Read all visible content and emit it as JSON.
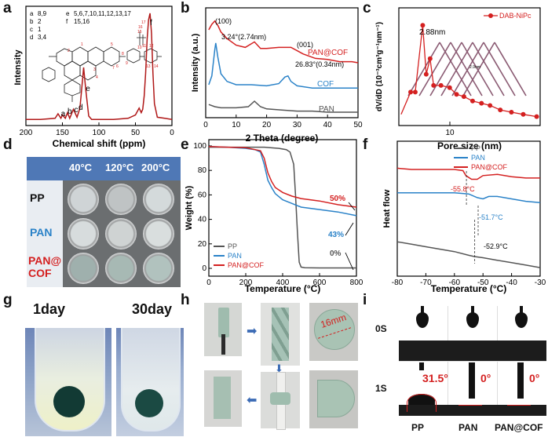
{
  "panel_labels": [
    "a",
    "b",
    "c",
    "d",
    "e",
    "f",
    "g",
    "h",
    "i"
  ],
  "chart_data": [
    {
      "panel": "a",
      "type": "line",
      "xlabel": "Chemical shift (ppm)",
      "ylabel": "Intensity",
      "xlim": [
        200,
        0
      ],
      "xticks": [
        "200",
        "150",
        "100",
        "50",
        "0"
      ],
      "color": "#b01818",
      "x": [
        200,
        180,
        160,
        156,
        152,
        150,
        146,
        143,
        140,
        135,
        130,
        126,
        123,
        121,
        118,
        114,
        110,
        100,
        80,
        60,
        50,
        45,
        42,
        40,
        38,
        36,
        34,
        32,
        30,
        28,
        26,
        24,
        20,
        10,
        0
      ],
      "y": [
        0.04,
        0.04,
        0.05,
        0.09,
        0.05,
        0.08,
        0.05,
        0.1,
        0.05,
        0.13,
        0.06,
        0.14,
        0.35,
        0.5,
        0.3,
        0.07,
        0.04,
        0.04,
        0.04,
        0.05,
        0.08,
        0.14,
        0.1,
        0.13,
        0.25,
        0.45,
        0.75,
        0.92,
        0.98,
        0.8,
        0.45,
        0.18,
        0.06,
        0.05,
        0.04
      ],
      "peak_labels": [
        "a",
        "b",
        "c",
        "d",
        "e",
        "f"
      ],
      "legend_rows": [
        [
          "a",
          "8,9",
          "e",
          "5,6,7,10,11,12,13,17"
        ],
        [
          "b",
          "2",
          "f",
          "15,16"
        ],
        [
          "c",
          "1",
          "",
          ""
        ],
        [
          "d",
          "3,4",
          "",
          ""
        ]
      ]
    },
    {
      "panel": "b",
      "type": "line",
      "xlabel": "2 Theta (degree)",
      "ylabel": "Intensity (a.u.)",
      "xlim": [
        0,
        50
      ],
      "xticks": [
        "0",
        "10",
        "20",
        "30",
        "40",
        "50"
      ],
      "series": [
        {
          "name": "PAN@COF",
          "color": "#d42020",
          "x": [
            1,
            2,
            3,
            4,
            5,
            7,
            10,
            13,
            16,
            18,
            20,
            24,
            28,
            32,
            36,
            40,
            44,
            48,
            50
          ],
          "y": [
            0.8,
            0.85,
            0.88,
            0.84,
            0.78,
            0.72,
            0.66,
            0.64,
            0.69,
            0.63,
            0.63,
            0.64,
            0.64,
            0.58,
            0.54,
            0.53,
            0.51,
            0.51,
            0.5
          ]
        },
        {
          "name": "COF",
          "color": "#2a82c8",
          "x": [
            1,
            2,
            3,
            3.3,
            4,
            5,
            7,
            10,
            15,
            20,
            24,
            26,
            27,
            28,
            30,
            35,
            40,
            45,
            50
          ],
          "y": [
            0.3,
            0.38,
            0.62,
            0.68,
            0.55,
            0.4,
            0.33,
            0.3,
            0.3,
            0.29,
            0.31,
            0.37,
            0.38,
            0.33,
            0.29,
            0.27,
            0.27,
            0.27,
            0.27
          ]
        },
        {
          "name": "PAN",
          "color": "#555555",
          "x": [
            1,
            3,
            5,
            8,
            10,
            14,
            16,
            18,
            20,
            25,
            30,
            35,
            40,
            45,
            50
          ],
          "y": [
            0.12,
            0.1,
            0.09,
            0.09,
            0.09,
            0.1,
            0.15,
            0.1,
            0.08,
            0.07,
            0.06,
            0.06,
            0.05,
            0.05,
            0.05
          ]
        }
      ],
      "annotations": [
        "(100)",
        "3.24°(2.74nm)",
        "(001)",
        "26.83°(0.34nm)"
      ]
    },
    {
      "panel": "c",
      "type": "line",
      "xlabel": "Pore size (nm)",
      "ylabel": "dV/dD (10⁻³cm³g⁻¹nm⁻¹)",
      "xscale": "log",
      "xtick": "10",
      "series": [
        {
          "name": "DAB-NiPc",
          "color": "#d42020",
          "x": [
            1.5,
            2.0,
            2.3,
            2.88,
            3.2,
            3.6,
            4.0,
            5.0,
            6.5,
            8,
            10,
            13,
            17,
            22,
            30,
            42,
            60,
            90
          ],
          "y": [
            0.05,
            0.15,
            0.15,
            0.45,
            0.23,
            0.3,
            0.18,
            0.18,
            0.17,
            0.14,
            0.13,
            0.11,
            0.1,
            0.09,
            0.07,
            0.06,
            0.05,
            0.04
          ]
        }
      ],
      "annotation": "2.88nm",
      "inset_label": "2.9nm"
    },
    {
      "panel": "e",
      "type": "line",
      "xlabel": "Temperature (°C)",
      "ylabel": "Weight (%)",
      "xlim": [
        0,
        800
      ],
      "ylim": [
        0,
        100
      ],
      "xticks": [
        "0",
        "200",
        "400",
        "600",
        "800"
      ],
      "yticks": [
        "0",
        "20",
        "40",
        "60",
        "80",
        "100"
      ],
      "series": [
        {
          "name": "PP",
          "color": "#555555",
          "x": [
            0,
            100,
            200,
            300,
            380,
            420,
            440,
            460,
            470,
            480,
            490,
            500,
            520,
            600,
            800
          ],
          "y": [
            99,
            99,
            99,
            99,
            98,
            97,
            95,
            85,
            60,
            30,
            5,
            1,
            0.5,
            0.3,
            0.3
          ]
        },
        {
          "name": "PAN",
          "color": "#2a82c8",
          "x": [
            0,
            100,
            200,
            250,
            280,
            300,
            320,
            340,
            360,
            400,
            450,
            500,
            600,
            700,
            800
          ],
          "y": [
            99.5,
            99,
            98,
            97,
            95,
            85,
            72,
            66,
            61,
            56,
            53,
            50,
            48,
            46,
            43
          ]
        },
        {
          "name": "PAN@COF",
          "color": "#d42020",
          "x": [
            0,
            100,
            200,
            250,
            280,
            300,
            320,
            340,
            360,
            400,
            450,
            500,
            600,
            700,
            800
          ],
          "y": [
            99.5,
            99,
            98.5,
            97,
            96,
            90,
            78,
            71,
            66,
            62,
            59,
            57,
            55,
            52,
            50
          ]
        }
      ],
      "annotations": [
        "50%",
        "43%",
        "0%"
      ]
    },
    {
      "panel": "f",
      "type": "line",
      "xlabel": "Temperature (°C)",
      "ylabel": "Heat flow",
      "xlim": [
        -80,
        -30
      ],
      "xticks": [
        "-80",
        "-70",
        "-60",
        "-50",
        "-40",
        "-30"
      ],
      "series": [
        {
          "name": "PP",
          "color": "#555555",
          "x": [
            -80,
            -75,
            -70,
            -65,
            -60,
            -55,
            -53,
            -50,
            -45,
            -40,
            -35,
            -30
          ],
          "y": [
            0.18,
            0.16,
            0.14,
            0.12,
            0.1,
            0.07,
            0.06,
            0.05,
            0.03,
            0.01,
            -0.01,
            -0.03
          ]
        },
        {
          "name": "PAN",
          "color": "#2a82c8",
          "x": [
            -80,
            -75,
            -70,
            -65,
            -60,
            -55,
            -52,
            -50,
            -48,
            -45,
            -40,
            -35,
            -30
          ],
          "y": [
            0.58,
            0.58,
            0.58,
            0.58,
            0.58,
            0.57,
            0.54,
            0.53,
            0.55,
            0.55,
            0.53,
            0.51,
            0.5
          ]
        },
        {
          "name": "PAN@COF",
          "color": "#d42020",
          "x": [
            -80,
            -75,
            -70,
            -65,
            -60,
            -57,
            -56,
            -54,
            -52,
            -50,
            -45,
            -40,
            -35,
            -30
          ],
          "y": [
            0.78,
            0.77,
            0.77,
            0.77,
            0.77,
            0.76,
            0.72,
            0.69,
            0.69,
            0.72,
            0.73,
            0.71,
            0.7,
            0.7
          ]
        }
      ],
      "annotations": [
        "-55.8°C",
        "-51.7°C",
        "-52.9°C"
      ]
    }
  ],
  "panel_d": {
    "columns": [
      "40°C",
      "120°C",
      "200°C"
    ],
    "rows": [
      "PP",
      "PAN",
      "PAN@\nCOF"
    ],
    "row_colors": [
      "#111111",
      "#2a82c8",
      "#d42020"
    ]
  },
  "panel_g": {
    "labels": [
      "1day",
      "30day"
    ]
  },
  "panel_h": {
    "measurement": "16mm"
  },
  "panel_i": {
    "row_labels": [
      "0S",
      "1S"
    ],
    "columns": [
      "PP",
      "PAN",
      "PAN@COF"
    ],
    "angles": [
      "31.5°",
      "0°",
      "0°"
    ]
  }
}
